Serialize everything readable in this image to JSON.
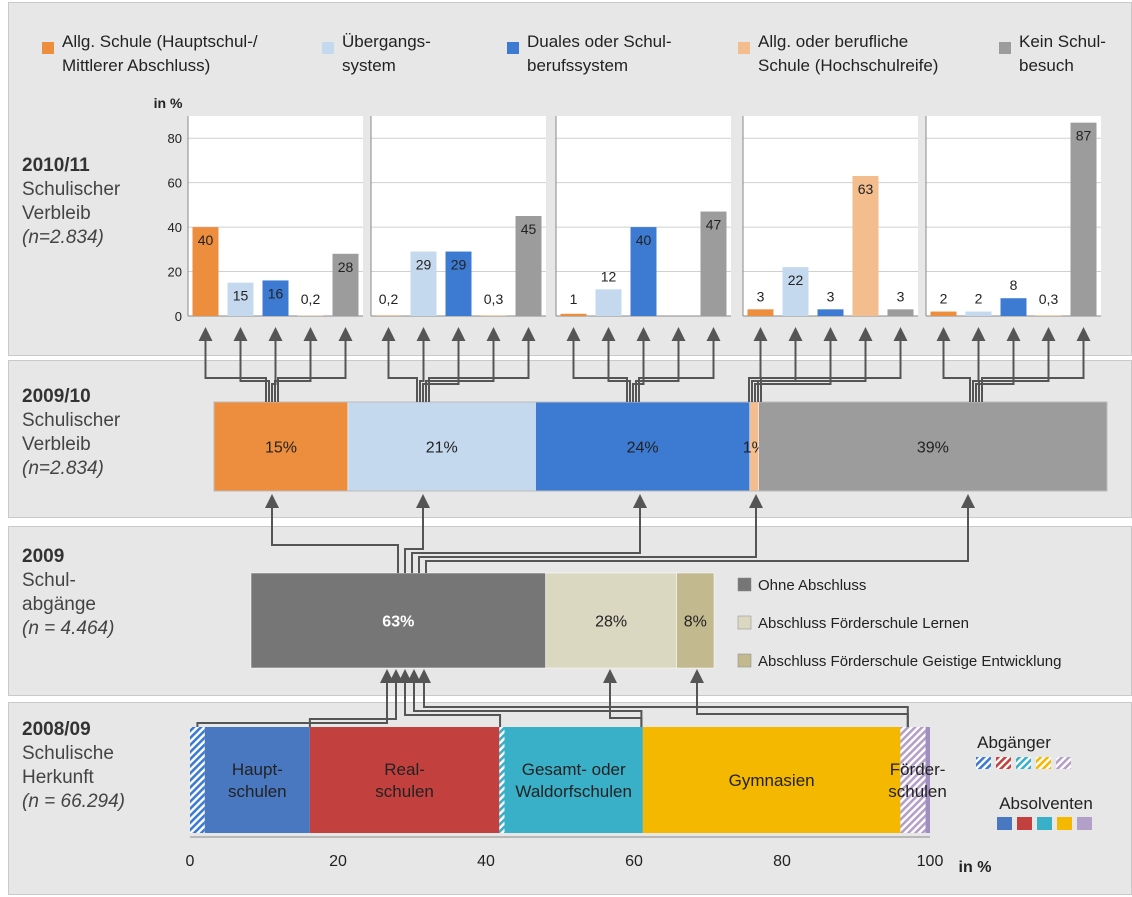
{
  "legend_top": [
    {
      "label": "Allg. Schule (Hauptschul-/\nMittlerer Abschluss)",
      "color": "#ed8d3e"
    },
    {
      "label": "Übergangs-\nsystem",
      "color": "#c5d9ee"
    },
    {
      "label": "Duales oder Schul-\nberufssystem",
      "color": "#3c7bd1"
    },
    {
      "label": "Allg. oder berufliche\nSchule (Hochschulreife)",
      "color": "#f3bd8d"
    },
    {
      "label": "Kein Schul-\nbesuch",
      "color": "#9c9c9c"
    }
  ],
  "rows": {
    "r1": {
      "year": "2010/11",
      "l1": "Schulischer",
      "l2": "Verbleib",
      "n": "(n=2.834)"
    },
    "r2": {
      "year": "2009/10",
      "l1": "Schulischer",
      "l2": "Verbleib",
      "n": "(n=2.834)"
    },
    "r3": {
      "year": "2009",
      "l1": "Schul-",
      "l2": "abgänge",
      "n": "(n = 4.464)"
    },
    "r4": {
      "year": "2008/09",
      "l1": "Schulische",
      "l2": "Herkunft",
      "n": "(n = 66.294)"
    }
  },
  "legend_mid": [
    {
      "label": "Ohne Abschluss",
      "color": "#767676"
    },
    {
      "label": "Abschluss Förderschule Lernen",
      "color": "#dad8c0"
    },
    {
      "label": "Abschluss Förderschule Geistige Entwicklung",
      "color": "#c3b98e"
    }
  ],
  "legend_bottom": {
    "abgaenger": "Abgänger",
    "absolventen": "Absolventen"
  },
  "chart_data": [
    {
      "type": "bar",
      "name": "2010/11 Schulischer Verbleib",
      "ylabel": "in %",
      "ylim": [
        0,
        90
      ],
      "yticks": [
        0,
        20,
        40,
        60,
        80
      ],
      "categories": [
        "Allg. Schule (Hauptschul-/Mittlerer Abschluss)",
        "Übergangssystem",
        "Duales oder Schulberufssystem",
        "Allg. oder berufliche Schule (Hochschulreife)",
        "Kein Schulbesuch"
      ],
      "groups": [
        {
          "origin": "Allg. Schule (Hauptschul-/Mittlerer Abschluss)",
          "values": [
            40,
            15,
            16,
            0.2,
            28
          ],
          "labels": [
            "40",
            "15",
            "16",
            "0,2",
            "28"
          ]
        },
        {
          "origin": "Übergangssystem",
          "values": [
            0.2,
            29,
            29,
            0.3,
            45
          ],
          "labels": [
            "0,2",
            "29",
            "29",
            "0,3",
            "45"
          ]
        },
        {
          "origin": "Duales oder Schulberufssystem",
          "values": [
            1,
            12,
            40,
            0,
            47
          ],
          "labels": [
            "1",
            "12",
            "40",
            "",
            "47"
          ]
        },
        {
          "origin": "Allg. oder berufliche Schule (Hochschulreife)",
          "values": [
            3,
            22,
            3,
            63,
            3
          ],
          "labels": [
            "3",
            "22",
            "3",
            "63",
            "3"
          ]
        },
        {
          "origin": "Kein Schulbesuch",
          "values": [
            2,
            2,
            8,
            0.3,
            87
          ],
          "labels": [
            "2",
            "2",
            "8",
            "0,3",
            "87"
          ]
        }
      ]
    },
    {
      "type": "bar",
      "name": "2009/10 Schulischer Verbleib",
      "orientation": "horizontal-stacked",
      "segments": [
        {
          "name": "Allg. Schule (Hauptschul-/Mittlerer Abschluss)",
          "value": 15,
          "label": "15%",
          "color": "#ed8d3e"
        },
        {
          "name": "Übergangssystem",
          "value": 21,
          "label": "21%",
          "color": "#c5d9ee"
        },
        {
          "name": "Duales oder Schulberufssystem",
          "value": 24,
          "label": "24%",
          "color": "#3c7bd1"
        },
        {
          "name": "Allg. oder berufliche Schule (Hochschulreife)",
          "value": 1,
          "label": "1%",
          "color": "#f3bd8d"
        },
        {
          "name": "Kein Schulbesuch",
          "value": 39,
          "label": "39%",
          "color": "#9c9c9c"
        }
      ]
    },
    {
      "type": "bar",
      "name": "2009 Schulabgänge",
      "orientation": "horizontal-stacked",
      "segments": [
        {
          "name": "Ohne Abschluss",
          "value": 63,
          "label": "63%",
          "color": "#767676"
        },
        {
          "name": "Abschluss Förderschule Lernen",
          "value": 28,
          "label": "28%",
          "color": "#dad8c0"
        },
        {
          "name": "Abschluss Förderschule Geistige Entwicklung",
          "value": 8,
          "label": "8%",
          "color": "#c3b98e"
        }
      ]
    },
    {
      "type": "bar",
      "name": "2008/09 Schulische Herkunft",
      "orientation": "horizontal-stacked",
      "xlabel": "in %",
      "xlim": [
        0,
        100
      ],
      "xticks": [
        0,
        20,
        40,
        60,
        80,
        100
      ],
      "segments": [
        {
          "name": "Hauptschulen Abgänger",
          "value": 2,
          "label": "",
          "color": "#3c7bd1",
          "hatched": true
        },
        {
          "name": "Hauptschulen",
          "value": 14.2,
          "label": "Haupt-\nschulen",
          "color": "#4a78c0"
        },
        {
          "name": "Realschulen",
          "value": 25.6,
          "label": "Real-\nschulen",
          "color": "#c2413f"
        },
        {
          "name": "Gesamt- oder Waldorfschulen Abgänger",
          "value": 0.7,
          "label": "",
          "color": "#3ab0c8",
          "hatched": true
        },
        {
          "name": "Gesamt- oder Waldorfschulen",
          "value": 18.7,
          "label": "Gesamt- oder\nWaldorfschulen",
          "color": "#3ab0c8"
        },
        {
          "name": "Gymnasien",
          "value": 34.8,
          "label": "Gymnasien",
          "color": "#f4b800"
        },
        {
          "name": "Förderschulen Abgänger",
          "value": 3.4,
          "label": "",
          "color": "#b3a0c8",
          "hatched": true
        },
        {
          "name": "Förderschulen",
          "value": 0.6,
          "label": "Förder-\nschulen",
          "color": "#a08ec0"
        }
      ]
    }
  ],
  "bottom_legend_swatches": {
    "abgaenger": [
      "#3c7bd1",
      "#c2413f",
      "#3ab0c8",
      "#f4b800",
      "#b3a0c8"
    ],
    "absolventen": [
      "#4a78c0",
      "#c2413f",
      "#3ab0c8",
      "#f4b800",
      "#b3a0c8"
    ]
  }
}
